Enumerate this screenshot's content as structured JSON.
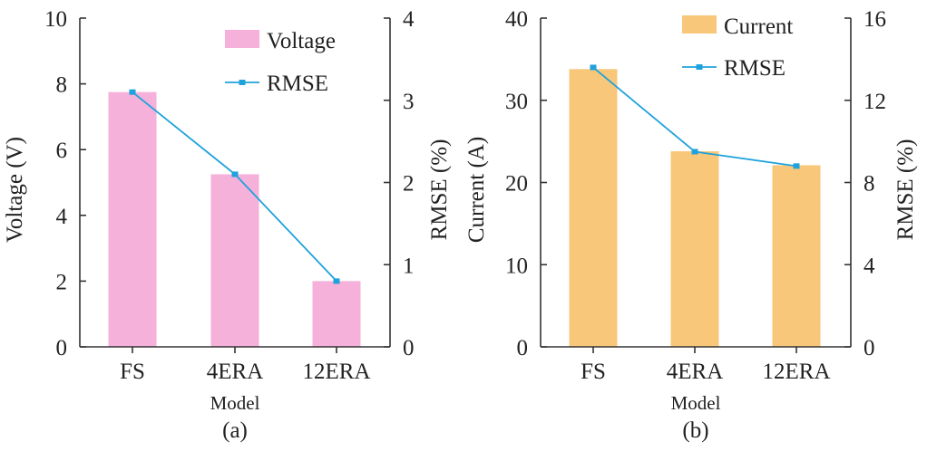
{
  "chart_data": [
    {
      "type": "bar",
      "panel_label": "(a)",
      "categories": [
        "FS",
        "4ERA",
        "12ERA"
      ],
      "xlabel": "Model",
      "ylabel": "Voltage (V)",
      "ylim": [
        0,
        10
      ],
      "yticks": [
        0,
        2,
        4,
        6,
        8,
        10
      ],
      "y2label": "RMSE (%)",
      "y2lim": [
        0,
        4
      ],
      "y2ticks": [
        0,
        1,
        2,
        3,
        4
      ],
      "series": [
        {
          "name": "Voltage",
          "type": "bar",
          "axis": "left",
          "values": [
            7.75,
            5.25,
            2.0
          ],
          "color": "#f5b1d9"
        },
        {
          "name": "RMSE",
          "type": "line",
          "axis": "right",
          "values": [
            3.1,
            2.1,
            0.8
          ],
          "color": "#1fa2dc"
        }
      ],
      "legend": "top-right",
      "grid": false
    },
    {
      "type": "bar",
      "panel_label": "(b)",
      "categories": [
        "FS",
        "4ERA",
        "12ERA"
      ],
      "xlabel": "Model",
      "ylabel": "Current (A)",
      "ylim": [
        0,
        40
      ],
      "yticks": [
        0,
        10,
        20,
        30,
        40
      ],
      "y2label": "RMSE (%)",
      "y2lim": [
        0,
        16
      ],
      "y2ticks": [
        0,
        4,
        8,
        12,
        16
      ],
      "series": [
        {
          "name": "Current",
          "type": "bar",
          "axis": "left",
          "values": [
            33.8,
            23.8,
            22.1
          ],
          "color": "#f9c77a"
        },
        {
          "name": "RMSE",
          "type": "line",
          "axis": "right",
          "values": [
            13.6,
            9.5,
            8.8
          ],
          "color": "#1fa2dc"
        }
      ],
      "legend": "top-right",
      "grid": false
    }
  ]
}
